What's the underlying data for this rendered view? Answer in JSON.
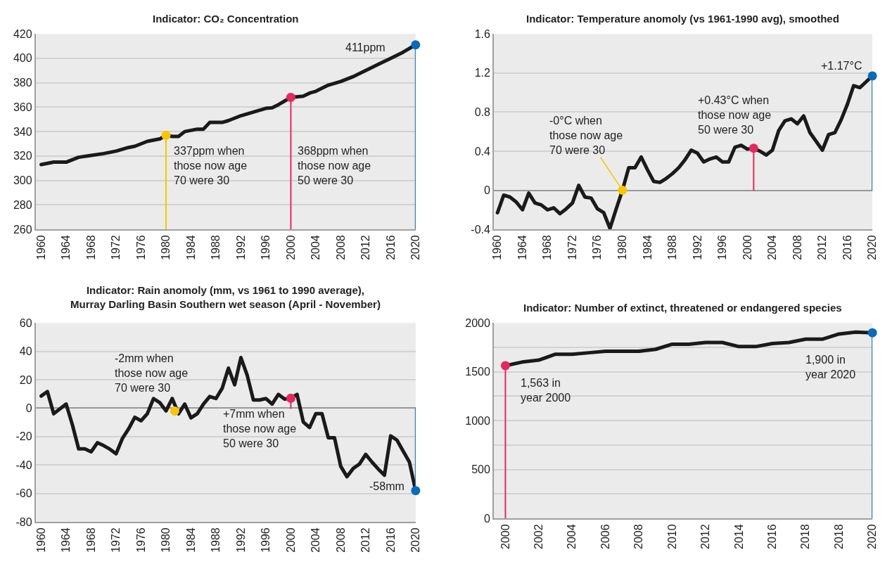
{
  "chart_data": [
    {
      "type": "line",
      "title": "Indicator: CO₂ Concentration",
      "x": [
        1960,
        1962,
        1964,
        1966,
        1968,
        1970,
        1972,
        1974,
        1975,
        1977,
        1979,
        1980,
        1981,
        1982,
        1983,
        1984,
        1985,
        1986,
        1987,
        1988,
        1989,
        1990,
        1992,
        1994,
        1996,
        1997,
        1998,
        2000,
        2002,
        2003,
        2004,
        2006,
        2008,
        2009,
        2010,
        2012,
        2014,
        2016,
        2018,
        2020
      ],
      "series": [
        {
          "color": "#1a1a1a",
          "values": [
            313,
            315,
            315,
            319,
            320.5,
            322,
            324,
            327,
            328,
            332,
            334,
            337,
            336,
            336,
            340,
            341,
            342,
            342,
            347.5,
            347.5,
            347.5,
            349,
            353,
            356,
            359,
            359.5,
            362,
            368,
            369,
            371.5,
            373,
            378,
            381,
            383,
            385,
            390,
            395,
            400,
            405,
            411
          ]
        },
        {
          "type": "lollipop",
          "x": [
            1980
          ],
          "values": [
            337
          ],
          "color": "#f7c600"
        },
        {
          "type": "lollipop",
          "x": [
            2000
          ],
          "values": [
            368
          ],
          "color": "#e5285e"
        },
        {
          "type": "lollipop",
          "x": [
            2020
          ],
          "values": [
            411
          ],
          "color": "#0a6bbd"
        }
      ],
      "xlim": [
        1959.1,
        2020
      ],
      "xticks": [
        1960,
        1964,
        1968,
        1972,
        1976,
        1980,
        1984,
        1988,
        1992,
        1996,
        2000,
        2004,
        2008,
        2012,
        2016,
        2020
      ],
      "ylim": [
        260,
        420
      ],
      "yticks": [
        260,
        280,
        300,
        320,
        340,
        360,
        380,
        400,
        420
      ],
      "grid": "y",
      "annotations": [
        "337ppm when\nthose now age\n70 were 30",
        "368ppm when\nthose now age\n50 were 30",
        "411ppm"
      ]
    },
    {
      "type": "line",
      "title": "Indicator: Temperature anomoly (vs 1961-1990 avg), smoothed",
      "x": [
        1960,
        1961,
        1962,
        1963,
        1964,
        1965,
        1966,
        1967,
        1968,
        1969,
        1970,
        1971,
        1972,
        1973,
        1974,
        1975,
        1976,
        1977,
        1978,
        1979,
        1980,
        1981,
        1982,
        1983,
        1984,
        1985,
        1986,
        1987,
        1988,
        1989,
        1990,
        1991,
        1992,
        1993,
        1994,
        1995,
        1996,
        1997,
        1998,
        1999,
        2000,
        2001,
        2002,
        2003,
        2004,
        2005,
        2006,
        2007,
        2008,
        2009,
        2010,
        2011,
        2012,
        2013,
        2014,
        2015,
        2016,
        2017,
        2018,
        2019,
        2020
      ],
      "series": [
        {
          "color": "#1a1a1a",
          "values": [
            -0.23,
            -0.05,
            -0.07,
            -0.12,
            -0.2,
            -0.03,
            -0.13,
            -0.15,
            -0.2,
            -0.18,
            -0.24,
            -0.19,
            -0.13,
            0.05,
            -0.07,
            -0.08,
            -0.19,
            -0.23,
            -0.39,
            -0.19,
            0,
            0.23,
            0.23,
            0.34,
            0.21,
            0.09,
            0.08,
            0.12,
            0.17,
            0.23,
            0.31,
            0.41,
            0.38,
            0.29,
            0.32,
            0.34,
            0.29,
            0.29,
            0.44,
            0.46,
            0.42,
            0.43,
            0.4,
            0.36,
            0.41,
            0.61,
            0.71,
            0.73,
            0.68,
            0.76,
            0.59,
            0.5,
            0.41,
            0.57,
            0.59,
            0.72,
            0.88,
            1.07,
            1.05,
            1.11,
            1.17
          ]
        },
        {
          "type": "lollipop",
          "x": [
            1980
          ],
          "values": [
            0
          ],
          "color": "#f7c600"
        },
        {
          "type": "lollipop",
          "x": [
            2001
          ],
          "values": [
            0.43
          ],
          "color": "#e5285e"
        },
        {
          "type": "lollipop",
          "x": [
            2020
          ],
          "values": [
            1.17
          ],
          "color": "#0a6bbd"
        }
      ],
      "xlim": [
        1959.4,
        2020
      ],
      "xticks": [
        1960,
        1964,
        1968,
        1972,
        1976,
        1980,
        1984,
        1988,
        1992,
        1996,
        2000,
        2004,
        2008,
        2012,
        2016,
        2020
      ],
      "ylim": [
        -0.4,
        1.6
      ],
      "yticks": [
        -0.4,
        0,
        0.4,
        0.8,
        1.2,
        1.6
      ],
      "grid": "y",
      "annotations": [
        {
          "text": "-0°C when\nthose now age\n70 were 30",
          "x": 1980,
          "y": 0
        },
        "+0.43°C when\nthose now age\n50 were 30",
        "+1.17°C"
      ]
    },
    {
      "type": "line",
      "title": "Indicator: Rain anomoly (mm, vs 1961 to 1990 average),\nMurray Darling Basin Southern wet season (April - November)",
      "x": [
        1960,
        1961,
        1962,
        1964,
        1965,
        1966,
        1967,
        1968,
        1969,
        1970,
        1971,
        1972,
        1973,
        1974,
        1975,
        1976,
        1977,
        1978,
        1979,
        1980,
        1981,
        1982,
        1983,
        1984,
        1985,
        1986,
        1987,
        1988,
        1989,
        1990,
        1991,
        1992,
        1993,
        1994,
        1995,
        1996,
        1997,
        1998,
        1999,
        2000,
        2001,
        2002,
        2003,
        2004,
        2005,
        2006,
        2007,
        2008,
        2009,
        2010,
        2011,
        2012,
        2013,
        2014,
        2015,
        2016,
        2017,
        2018,
        2019,
        2020
      ],
      "series": [
        {
          "color": "#1a1a1a",
          "values": [
            8.6,
            11.7,
            -3.9,
            2.9,
            -11.7,
            -28.6,
            -28.6,
            -30.7,
            -24.3,
            -26.3,
            -28.8,
            -32.1,
            -21.4,
            -14.6,
            -6.4,
            -8.8,
            -3.9,
            6.8,
            3.9,
            -1.9,
            6.8,
            -3.9,
            2.9,
            -6.8,
            -3.9,
            2.9,
            8.2,
            6.8,
            14,
            28.2,
            16.5,
            35.6,
            23.3,
            5.8,
            5.8,
            6.8,
            2.9,
            9.7,
            6.4,
            7,
            9.7,
            -9.7,
            -13.6,
            -3.9,
            -3.9,
            -20.8,
            -20.8,
            -40.9,
            -48.2,
            -42.4,
            -39.3,
            -32.5,
            -37.9,
            -42.8,
            -47.1,
            -19.5,
            -22.4,
            -30.2,
            -37.9,
            -58
          ]
        },
        {
          "type": "lollipop",
          "x": [
            1981.4
          ],
          "values": [
            -2
          ],
          "color": "#f7c600"
        },
        {
          "type": "lollipop",
          "x": [
            2000
          ],
          "values": [
            7
          ],
          "color": "#e5285e"
        },
        {
          "type": "lollipop",
          "x": [
            2020
          ],
          "values": [
            -58
          ],
          "color": "#0a6bbd"
        }
      ],
      "xlim": [
        1959.1,
        2020
      ],
      "xticks": [
        1960,
        1964,
        1968,
        1972,
        1976,
        1980,
        1984,
        1988,
        1992,
        1996,
        2000,
        2004,
        2008,
        2012,
        2016,
        2020
      ],
      "ylim": [
        -80,
        60
      ],
      "yticks": [
        -80,
        -60,
        -40,
        -20,
        0,
        20,
        40,
        60
      ],
      "grid": "y",
      "annotations": [
        "-2mm when\nthose now age\n70 were 30",
        "+7mm when\nthose now age\n50 were 30",
        "-58mm"
      ]
    },
    {
      "type": "line",
      "title": "Indicator: Number of extinct, threatened or endangered species",
      "categories": [
        "2000",
        null,
        "2002",
        null,
        "2004",
        null,
        "2006",
        null,
        "2008",
        null,
        "2010",
        null,
        "2012",
        null,
        "2014",
        null,
        "2016",
        null,
        "2018",
        null,
        "2018",
        null,
        "2020"
      ],
      "series": [
        {
          "color": "#1a1a1a",
          "values": [
            1563,
            1600,
            1620,
            1680,
            1680,
            1695,
            1710,
            1710,
            1710,
            1730,
            1783,
            1783,
            1800,
            1800,
            1758,
            1758,
            1790,
            1800,
            1834,
            1834,
            1887,
            1907,
            1900
          ]
        },
        {
          "type": "lollipop",
          "values": [
            1563,
            null,
            null,
            null,
            null,
            null,
            null,
            null,
            null,
            null,
            null,
            null,
            null,
            null,
            null,
            null,
            null,
            null,
            null,
            null,
            null,
            null,
            null
          ],
          "color": "#e5285e"
        },
        {
          "type": "lollipop",
          "values": [
            null,
            null,
            null,
            null,
            null,
            null,
            null,
            null,
            null,
            null,
            null,
            null,
            null,
            null,
            null,
            null,
            null,
            null,
            null,
            null,
            null,
            null,
            1900
          ],
          "color": "#0a6bbd"
        }
      ],
      "ylim": [
        0,
        2000
      ],
      "yticks": [
        0,
        {
          "value": 250,
          "label": null
        },
        500,
        {
          "value": 750,
          "label": null
        },
        1000,
        {
          "value": 1250,
          "label": null
        },
        1500,
        {
          "value": 1750,
          "label": null
        },
        2000
      ],
      "grid": "y",
      "annotations": [
        "1,563 in\nyear 2000",
        "1,900 in\nyear 2020"
      ]
    }
  ]
}
